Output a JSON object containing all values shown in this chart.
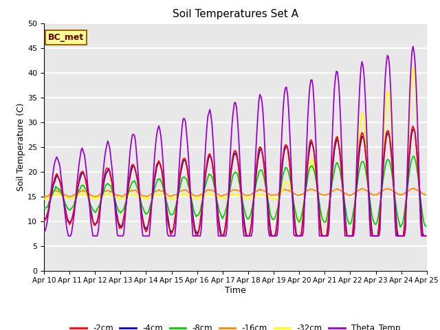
{
  "title": "Soil Temperatures Set A",
  "xlabel": "Time",
  "ylabel": "Soil Temperature (C)",
  "ylim": [
    0,
    50
  ],
  "yticks": [
    0,
    5,
    10,
    15,
    20,
    25,
    30,
    35,
    40,
    45,
    50
  ],
  "series_colors": {
    "-2cm": "#ff0000",
    "-4cm": "#0000cc",
    "-8cm": "#00cc00",
    "-16cm": "#ff8800",
    "-32cm": "#ffff00",
    "Theta_Temp": "#9900cc"
  },
  "annotation_text": "BC_met",
  "annotation_bg": "#ffff99",
  "annotation_border": "#996600",
  "annotation_text_color": "#660000",
  "background_color": "#e8e8e8",
  "grid_color": "#ffffff",
  "figsize": [
    6.4,
    4.8
  ],
  "dpi": 100
}
